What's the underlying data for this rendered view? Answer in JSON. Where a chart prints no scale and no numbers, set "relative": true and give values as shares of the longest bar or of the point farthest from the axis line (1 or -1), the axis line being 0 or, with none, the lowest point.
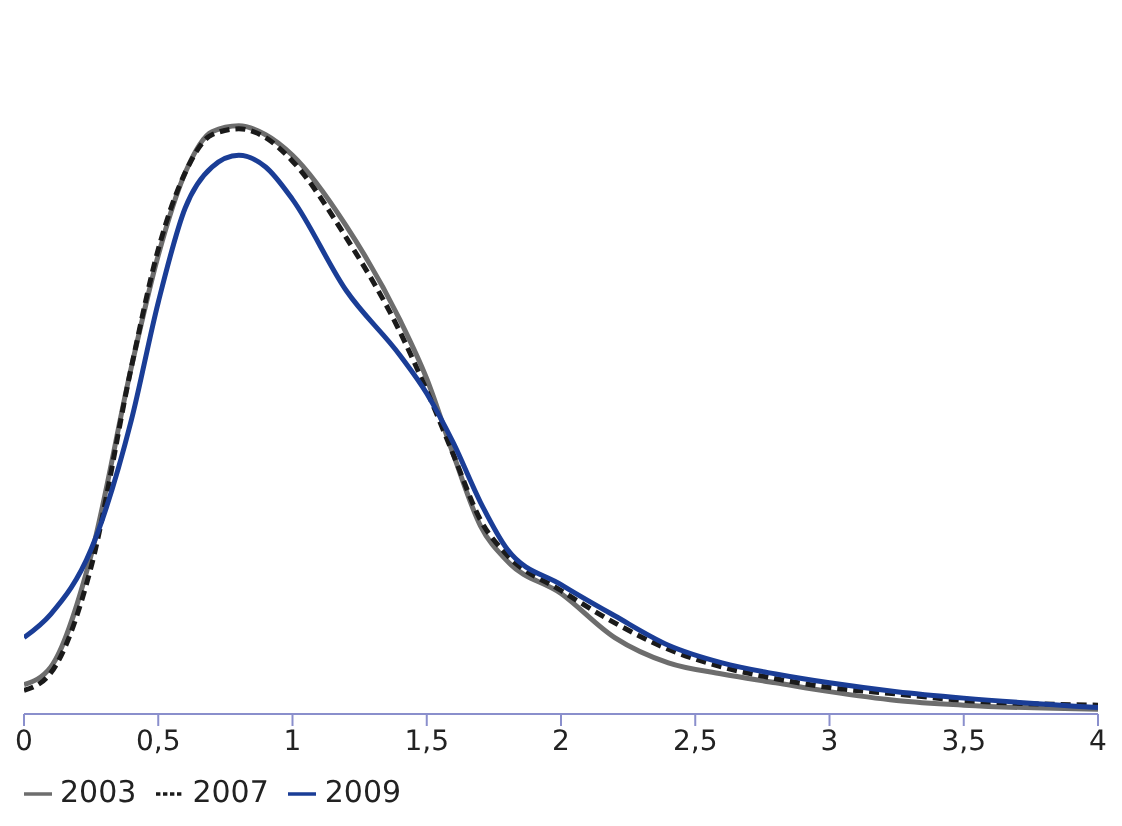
{
  "chart_data": {
    "type": "line",
    "relative": true,
    "x": [
      0,
      0.1,
      0.25,
      0.4,
      0.5,
      0.6,
      0.7,
      0.8,
      0.9,
      1.0,
      1.2,
      1.4,
      1.5,
      1.6,
      1.7,
      1.8,
      2.0,
      2.2,
      2.4,
      2.6,
      2.8,
      3.0,
      3.25,
      3.5,
      4
    ],
    "series": [
      {
        "name": "2003",
        "color": "#6d6d6d",
        "line_style": "solid",
        "values": [
          0.05,
          0.08,
          0.27,
          0.59,
          0.78,
          0.92,
          0.99,
          1.0,
          0.985,
          0.95,
          0.83,
          0.67,
          0.57,
          0.44,
          0.32,
          0.26,
          0.205,
          0.13,
          0.087,
          0.068,
          0.053,
          0.038,
          0.023,
          0.015,
          0.008
        ]
      },
      {
        "name": "2007",
        "color": "#1a1a1a",
        "line_style": "dashed",
        "values": [
          0.04,
          0.07,
          0.25,
          0.59,
          0.79,
          0.92,
          0.985,
          0.995,
          0.98,
          0.94,
          0.81,
          0.65,
          0.55,
          0.44,
          0.33,
          0.27,
          0.21,
          0.155,
          0.11,
          0.08,
          0.06,
          0.045,
          0.034,
          0.023,
          0.015
        ]
      },
      {
        "name": "2009",
        "color": "#1a3d96",
        "line_style": "solid",
        "values": [
          0.13,
          0.17,
          0.28,
          0.5,
          0.7,
          0.86,
          0.93,
          0.95,
          0.93,
          0.875,
          0.72,
          0.61,
          0.545,
          0.46,
          0.36,
          0.28,
          0.22,
          0.167,
          0.117,
          0.087,
          0.068,
          0.053,
          0.038,
          0.027,
          0.011
        ]
      }
    ],
    "xlim": [
      0,
      4
    ],
    "xticks": [
      0,
      {
        "value": 0.5,
        "label": "0,5"
      },
      1,
      {
        "value": 1.5,
        "label": "1,5"
      },
      2,
      {
        "value": 2.5,
        "label": "2,5"
      },
      3,
      {
        "value": 3.5,
        "label": "3,5"
      },
      4
    ],
    "marker": "none",
    "grid": false,
    "legend": "bottom"
  }
}
